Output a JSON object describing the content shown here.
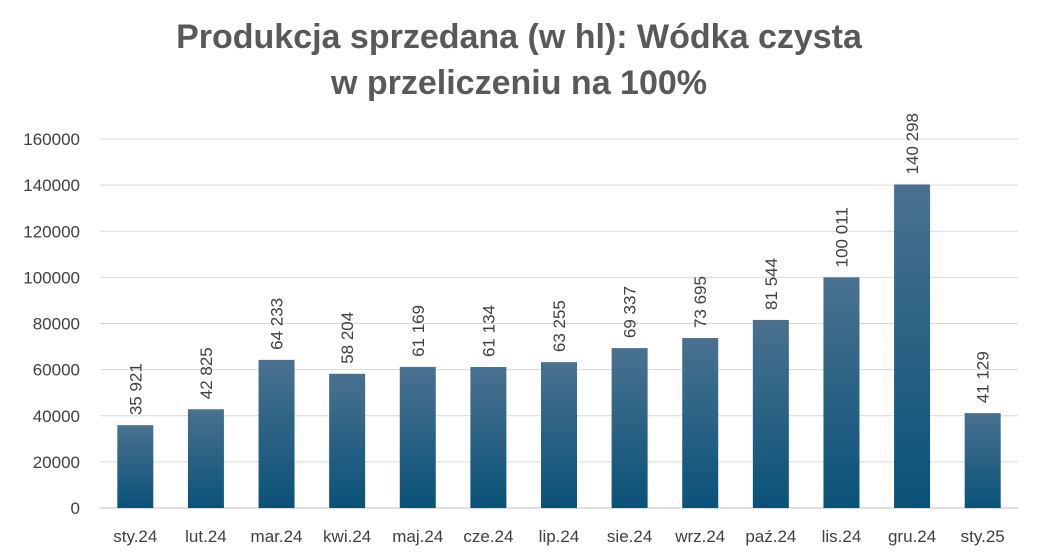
{
  "chart_data": {
    "type": "bar",
    "title_lines": [
      "Produkcja sprzedana (w hl): Wódka czysta",
      "w przeliczeniu na 100%"
    ],
    "xlabel": "",
    "ylabel": "",
    "categories": [
      "sty.24",
      "lut.24",
      "mar.24",
      "kwi.24",
      "maj.24",
      "cze.24",
      "lip.24",
      "sie.24",
      "wrz.24",
      "paź.24",
      "lis.24",
      "gru.24",
      "sty.25"
    ],
    "values": [
      35921,
      42825,
      64233,
      58204,
      61169,
      61134,
      63255,
      69337,
      73695,
      81544,
      100011,
      140298,
      41129
    ],
    "data_labels": [
      "35 921",
      "42 825",
      "64 233",
      "58 204",
      "61 169",
      "61 134",
      "63 255",
      "69 337",
      "73 695",
      "81 544",
      "100 011",
      "140 298",
      "41 129"
    ],
    "ylim": [
      0,
      160000
    ],
    "yticks": [
      "0",
      "20000",
      "40000",
      "60000",
      "80000",
      "100000",
      "120000",
      "140000",
      "160000"
    ],
    "grid": true,
    "legend": "none",
    "colors": {
      "bar_top": "#4a7190",
      "bar_bottom": "#0a5278",
      "title": "#595959",
      "text": "#404040",
      "grid": "#d9d9d9"
    }
  }
}
